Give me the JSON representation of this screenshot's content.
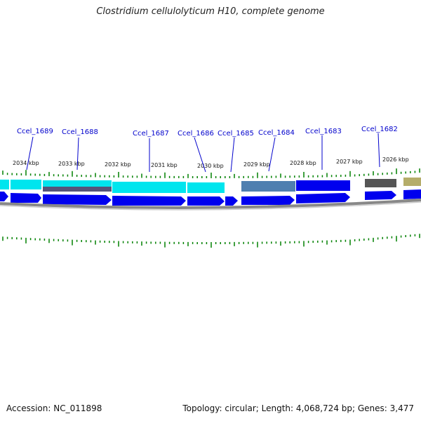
{
  "title": "Clostridium cellulolyticum H10, complete genome",
  "footer": {
    "accession": "Accession: NC_011898",
    "summary": "Topology: circular; Length: 4,068,724 bp; Genes: 3,477"
  },
  "gene_labels": [
    {
      "name": "Ccel_1689"
    },
    {
      "name": "Ccel_1688"
    },
    {
      "name": "Ccel_1687"
    },
    {
      "name": "Ccel_1686"
    },
    {
      "name": "Ccel_1685"
    },
    {
      "name": "Ccel_1684"
    },
    {
      "name": "Ccel_1683"
    },
    {
      "name": "Ccel_1682"
    }
  ],
  "kbp_labels": [
    "2034 kbp",
    "2033 kbp",
    "2032 kbp",
    "2031 kbp",
    "2030 kbp",
    "2029 kbp",
    "2028 kbp",
    "2027 kbp",
    "2026 kbp"
  ],
  "colors": {
    "cds": "#0000ee",
    "cyan": "#00e5ee",
    "gray": "#555555",
    "steel": "#4f7fb0",
    "olive": "#b5ad6a",
    "tick": "#008000",
    "backbone": "#888888",
    "label": "#0000cc"
  }
}
